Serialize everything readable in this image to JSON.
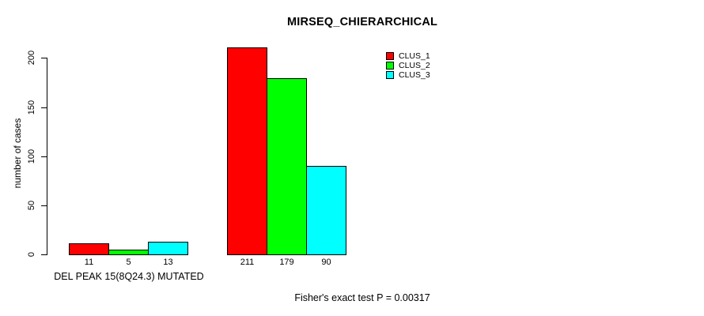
{
  "figure": {
    "background": "#FFFFFF",
    "text_color": "#000000",
    "bar_border_color": "#000000"
  },
  "chart_data": {
    "type": "bar",
    "title": "MIRSEQ_CHIERARCHICAL",
    "xlabel": "",
    "ylabel": "number of cases",
    "ylim": [
      0,
      200
    ],
    "yticks": [
      0,
      50,
      100,
      150,
      200
    ],
    "grid": false,
    "legend_position": "top-right-inside",
    "categories": [
      "DEL PEAK 15(8Q24.3) MUTATED",
      ""
    ],
    "series": [
      {
        "name": "CLUS_1",
        "color": "#FF0000",
        "values": [
          11,
          211
        ]
      },
      {
        "name": "CLUS_2",
        "color": "#00FF00",
        "values": [
          5,
          179
        ]
      },
      {
        "name": "CLUS_3",
        "color": "#00FFFF",
        "values": [
          13,
          90
        ]
      }
    ],
    "bar_value_labels": [
      [
        11,
        5,
        13
      ],
      [
        211,
        179,
        90
      ]
    ],
    "annotation": "Fisher's exact test P = 0.00317"
  }
}
